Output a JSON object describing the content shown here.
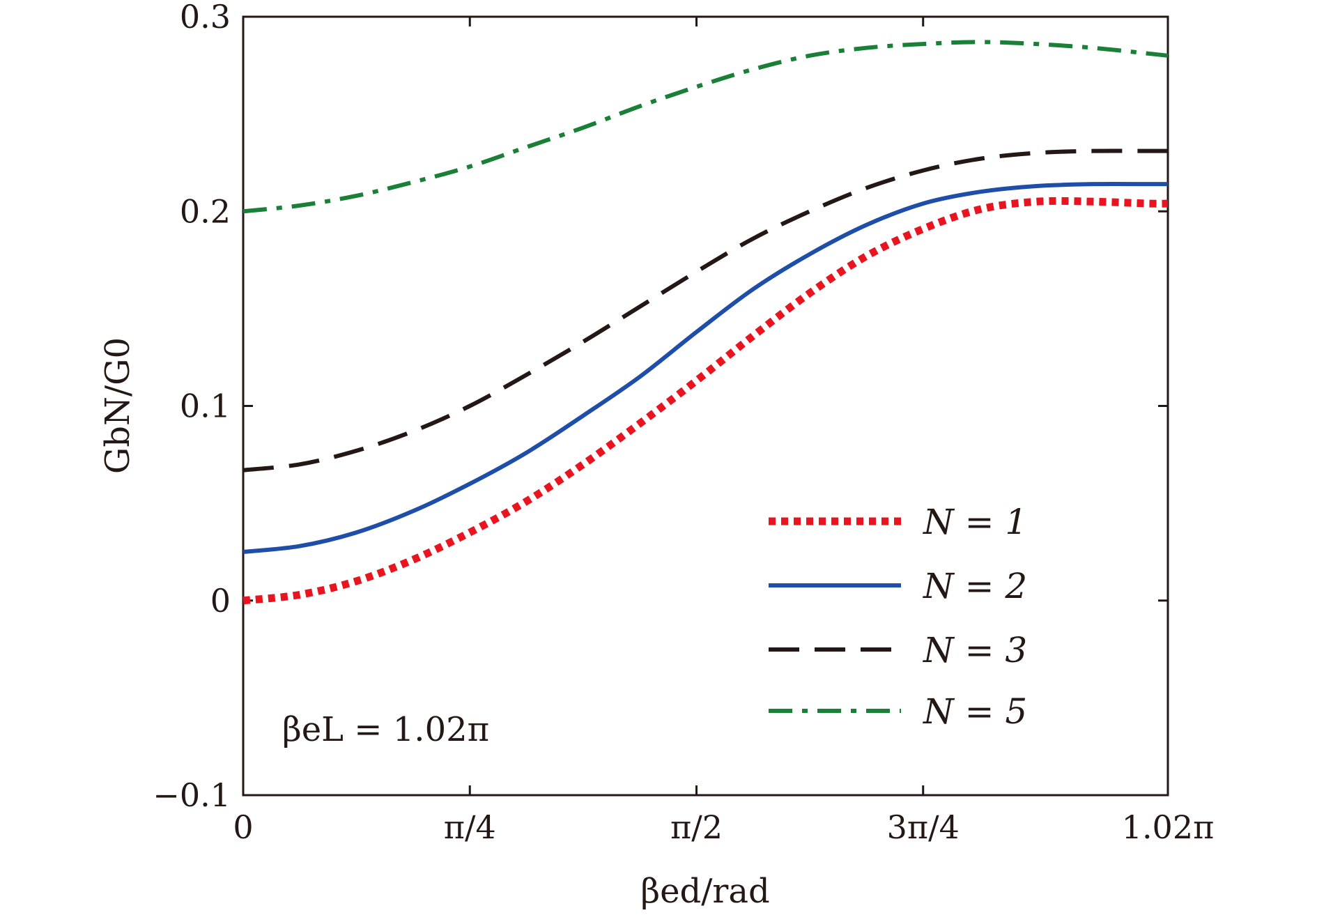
{
  "chart_data": {
    "type": "line",
    "xlabel": "βed/rad",
    "ylabel": "GbN/G0",
    "xlim": [
      0,
      1.02
    ],
    "ylim": [
      -0.1,
      0.3
    ],
    "x_unit": "π",
    "x_ticks": [
      {
        "value": 0,
        "label": "0"
      },
      {
        "value": 0.25,
        "label": "π/4"
      },
      {
        "value": 0.5,
        "label": "π/2"
      },
      {
        "value": 0.75,
        "label": "3π/4"
      },
      {
        "value": 1.02,
        "label": "1.02π"
      }
    ],
    "y_ticks": [
      {
        "value": -0.1,
        "label": "−0.1"
      },
      {
        "value": 0,
        "label": "0"
      },
      {
        "value": 0.1,
        "label": "0.1"
      },
      {
        "value": 0.2,
        "label": "0.2"
      },
      {
        "value": 0.3,
        "label": "0.3"
      }
    ],
    "grid": false,
    "legend_position": "bottom-right",
    "annotation": "βeL = 1.02π",
    "x": [
      0,
      0.0625,
      0.125,
      0.1875,
      0.25,
      0.3125,
      0.375,
      0.4375,
      0.5,
      0.5625,
      0.625,
      0.6875,
      0.75,
      0.8125,
      0.875,
      0.9375,
      1.0,
      1.02
    ],
    "series": [
      {
        "name": "N = 1",
        "color": "#e8141f",
        "style": "dotted",
        "values": [
          0.0,
          0.003,
          0.01,
          0.021,
          0.035,
          0.051,
          0.07,
          0.091,
          0.113,
          0.136,
          0.158,
          0.177,
          0.191,
          0.201,
          0.205,
          0.205,
          0.204,
          0.204
        ]
      },
      {
        "name": "N = 2",
        "color": "#1f4ea8",
        "style": "solid",
        "values": [
          0.025,
          0.028,
          0.035,
          0.046,
          0.06,
          0.076,
          0.095,
          0.115,
          0.138,
          0.16,
          0.178,
          0.193,
          0.204,
          0.21,
          0.213,
          0.214,
          0.214,
          0.214
        ]
      },
      {
        "name": "N = 3",
        "color": "#231815",
        "style": "dashed",
        "values": [
          0.067,
          0.07,
          0.077,
          0.087,
          0.1,
          0.116,
          0.133,
          0.151,
          0.169,
          0.186,
          0.2,
          0.212,
          0.221,
          0.227,
          0.23,
          0.231,
          0.231,
          0.231
        ]
      },
      {
        "name": "N = 5",
        "color": "#1a7f37",
        "style": "dashdot",
        "values": [
          0.2,
          0.203,
          0.208,
          0.215,
          0.223,
          0.233,
          0.243,
          0.254,
          0.264,
          0.273,
          0.28,
          0.284,
          0.286,
          0.287,
          0.286,
          0.284,
          0.281,
          0.28
        ]
      }
    ]
  }
}
